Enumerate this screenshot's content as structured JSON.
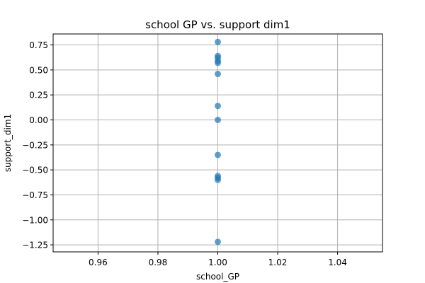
{
  "chart_data": {
    "type": "scatter",
    "title": "school GP vs. support dim1",
    "xlabel": "school_GP",
    "ylabel": "support_dim1",
    "xlim": [
      0.945,
      1.055
    ],
    "ylim": [
      -1.32,
      0.86
    ],
    "xticks": [
      0.96,
      0.98,
      1.0,
      1.02,
      1.04
    ],
    "xtick_labels": [
      "0.96",
      "0.98",
      "1.00",
      "1.02",
      "1.04"
    ],
    "yticks": [
      0.75,
      0.5,
      0.25,
      0.0,
      -0.25,
      -0.5,
      -0.75,
      -1.0,
      -1.25
    ],
    "ytick_labels": [
      "0.75",
      "0.50",
      "0.25",
      "0.00",
      "−0.25",
      "−0.50",
      "−0.75",
      "−1.00",
      "−1.25"
    ],
    "grid": true,
    "marker_color": "#1f77b4",
    "marker_alpha": 0.7,
    "points": [
      {
        "x": 1.0,
        "y": 0.78
      },
      {
        "x": 1.0,
        "y": 0.64
      },
      {
        "x": 1.0,
        "y": 0.62
      },
      {
        "x": 1.0,
        "y": 0.59
      },
      {
        "x": 1.0,
        "y": 0.57
      },
      {
        "x": 1.0,
        "y": 0.46
      },
      {
        "x": 1.0,
        "y": 0.14
      },
      {
        "x": 1.0,
        "y": 0.0
      },
      {
        "x": 1.0,
        "y": -0.35
      },
      {
        "x": 1.0,
        "y": -0.56
      },
      {
        "x": 1.0,
        "y": -0.58
      },
      {
        "x": 1.0,
        "y": -0.6
      },
      {
        "x": 1.0,
        "y": -1.22
      }
    ]
  }
}
